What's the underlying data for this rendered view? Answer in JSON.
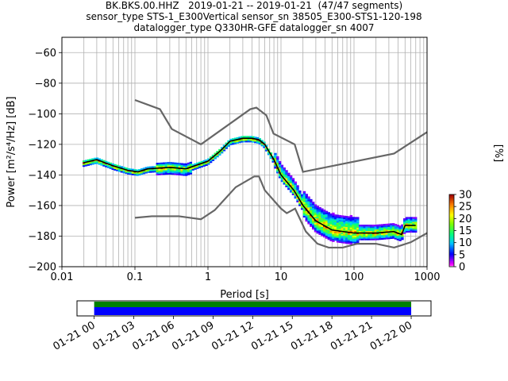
{
  "header": {
    "line1": "BK.BKS.00.HHZ   2019-01-21 -- 2019-01-21  (47/47 segments)",
    "line2": "sensor_type STS-1_E300Vertical sensor_sn 38505_E300-STS1-120-198",
    "line3": "datalogger_type Q330HR-GFE datalogger_sn 4007"
  },
  "chart_data": [
    {
      "type": "heatmap",
      "xlabel": "Period [s]",
      "ylabel": "Power [m²/s⁴/Hz] [dB]",
      "xscale": "log",
      "xlim": [
        0.01,
        1000
      ],
      "ylim": [
        -200,
        -50
      ],
      "xticks": [
        0.01,
        0.1,
        1,
        10,
        100,
        1000
      ],
      "xtick_labels": [
        "0.01",
        "0.1",
        "1",
        "10",
        "100",
        "1000"
      ],
      "yticks": [
        -200,
        -180,
        -160,
        -140,
        -120,
        -100,
        -80,
        -60
      ],
      "ytick_labels": [
        "−200",
        "−180",
        "−160",
        "−140",
        "−120",
        "−100",
        "−80",
        "−60"
      ],
      "grid": true,
      "colorbar": {
        "label": "[%]",
        "range": [
          0,
          30
        ],
        "ticks": [
          "0",
          "5",
          "10",
          "15",
          "20",
          "25",
          "30"
        ]
      },
      "series": [
        {
          "role": "new-high-noise-model",
          "points": [
            [
              0.1,
              -91
            ],
            [
              0.22,
              -97
            ],
            [
              0.32,
              -110
            ],
            [
              0.8,
              -120
            ],
            [
              3.8,
              -97
            ],
            [
              4.6,
              -96
            ],
            [
              6.3,
              -101
            ],
            [
              7.9,
              -113
            ],
            [
              15.4,
              -120
            ],
            [
              20,
              -138
            ],
            [
              354,
              -126
            ],
            [
              1000,
              -112
            ]
          ]
        },
        {
          "role": "new-low-noise-model",
          "points": [
            [
              0.1,
              -168
            ],
            [
              0.17,
              -167
            ],
            [
              0.4,
              -167
            ],
            [
              0.8,
              -169
            ],
            [
              1.24,
              -163
            ],
            [
              2.4,
              -148
            ],
            [
              4.3,
              -141
            ],
            [
              5,
              -141
            ],
            [
              6,
              -150
            ],
            [
              10,
              -162
            ],
            [
              12,
              -165
            ],
            [
              15.6,
              -162
            ],
            [
              21.9,
              -177
            ],
            [
              31.6,
              -185
            ],
            [
              45,
              -187.5
            ],
            [
              70,
              -187.5
            ],
            [
              110,
              -185
            ],
            [
              200,
              -185
            ],
            [
              354,
              -187.5
            ],
            [
              600,
              -184
            ],
            [
              1000,
              -178
            ]
          ]
        },
        {
          "role": "mean",
          "points": [
            [
              0.02,
              -132
            ],
            [
              0.03,
              -130
            ],
            [
              0.05,
              -134
            ],
            [
              0.08,
              -137
            ],
            [
              0.11,
              -138
            ],
            [
              0.15,
              -136
            ],
            [
              0.3,
              -135
            ],
            [
              0.5,
              -136
            ],
            [
              1,
              -131
            ],
            [
              1.5,
              -124
            ],
            [
              2,
              -118
            ],
            [
              3,
              -116
            ],
            [
              4,
              -116
            ],
            [
              5,
              -117
            ],
            [
              6,
              -120
            ],
            [
              8,
              -130
            ],
            [
              10,
              -140
            ],
            [
              15,
              -150
            ],
            [
              20,
              -160
            ],
            [
              30,
              -170
            ],
            [
              50,
              -176
            ],
            [
              100,
              -178
            ],
            [
              200,
              -178
            ],
            [
              350,
              -177
            ],
            [
              450,
              -179
            ],
            [
              500,
              -173
            ],
            [
              700,
              -173
            ]
          ]
        }
      ]
    },
    {
      "type": "timeline",
      "xtick_labels": [
        "01-21 00",
        "01-21 03",
        "01-21 06",
        "01-21 09",
        "01-21 12",
        "01-21 15",
        "01-21 18",
        "01-21 21",
        "01-22 00"
      ],
      "x_range_hours": [
        -1.3,
        25.5
      ],
      "data_hours": [
        0,
        24
      ],
      "bars": [
        {
          "role": "data-available",
          "color": "#008000"
        },
        {
          "role": "psd-segments",
          "color": "#0000ff"
        }
      ]
    }
  ]
}
